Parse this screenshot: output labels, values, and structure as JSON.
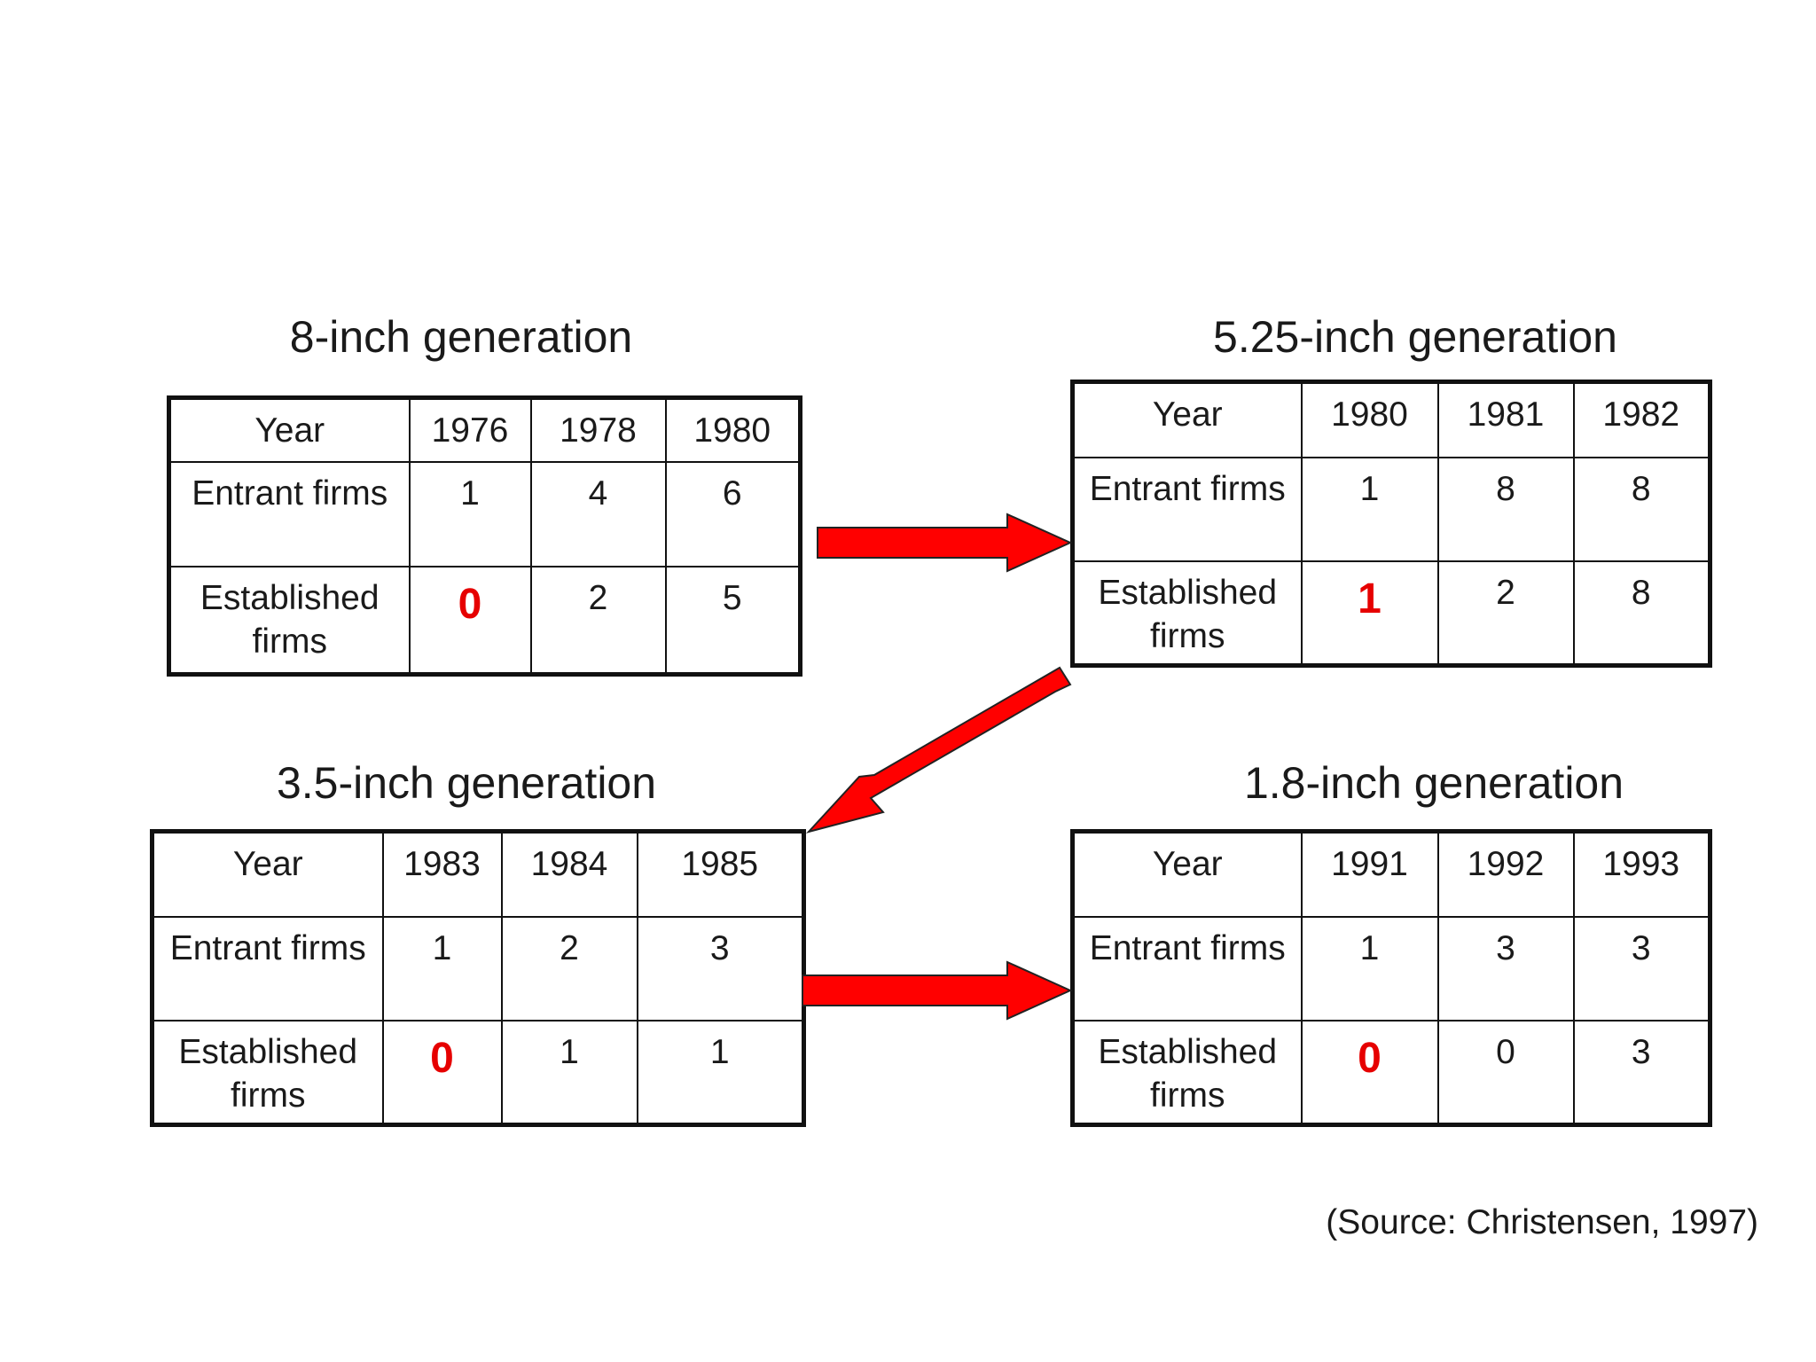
{
  "colors": {
    "arrow": "#ff0000",
    "highlight": "#e60000",
    "border": "#111111"
  },
  "generations": [
    {
      "title": "8-inch generation",
      "row_labels": {
        "year": "Year",
        "entrant": "Entrant firms",
        "established": "Established firms"
      },
      "years": [
        "1976",
        "1978",
        "1980"
      ],
      "entrant": [
        "1",
        "4",
        "6"
      ],
      "established": [
        "0",
        "2",
        "5"
      ],
      "highlight_first_established": true
    },
    {
      "title": "5.25-inch generation",
      "row_labels": {
        "year": "Year",
        "entrant": "Entrant firms",
        "established": "Established firms"
      },
      "years": [
        "1980",
        "1981",
        "1982"
      ],
      "entrant": [
        "1",
        "8",
        "8"
      ],
      "established": [
        "1",
        "2",
        "8"
      ],
      "highlight_first_established": true
    },
    {
      "title": "3.5-inch generation",
      "row_labels": {
        "year": "Year",
        "entrant": "Entrant firms",
        "established": "Established firms"
      },
      "years": [
        "1983",
        "1984",
        "1985"
      ],
      "entrant": [
        "1",
        "2",
        "3"
      ],
      "established": [
        "0",
        "1",
        "1"
      ],
      "highlight_first_established": true
    },
    {
      "title": "1.8-inch generation",
      "row_labels": {
        "year": "Year",
        "entrant": "Entrant firms",
        "established": "Established firms"
      },
      "years": [
        "1991",
        "1992",
        "1993"
      ],
      "entrant": [
        "1",
        "3",
        "3"
      ],
      "established": [
        "0",
        "0",
        "3"
      ],
      "highlight_first_established": true
    }
  ],
  "source": "(Source: Christensen, 1997)"
}
